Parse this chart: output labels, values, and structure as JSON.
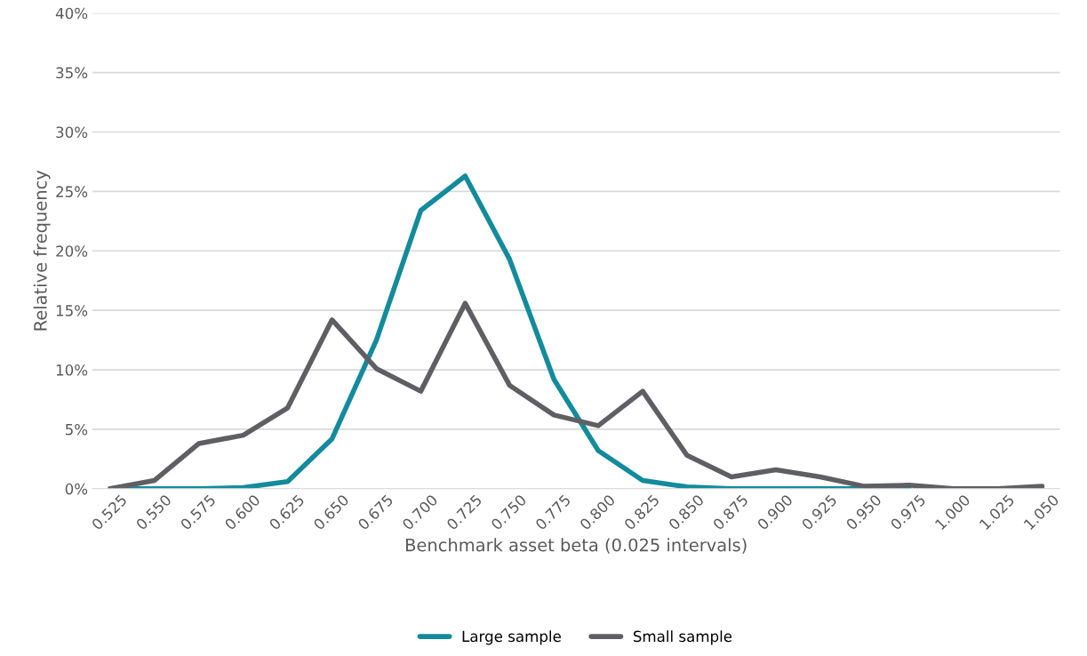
{
  "chart_data": {
    "type": "line",
    "xlabel": "Benchmark asset beta (0.025 intervals)",
    "ylabel": "Relative frequency",
    "categories": [
      "0.525",
      "0.550",
      "0.575",
      "0.600",
      "0.625",
      "0.650",
      "0.675",
      "0.700",
      "0.725",
      "0.750",
      "0.775",
      "0.800",
      "0.825",
      "0.850",
      "0.875",
      "0.900",
      "0.925",
      "0.950",
      "0.975",
      "1.000",
      "1.025",
      "1.050"
    ],
    "series": [
      {
        "name": "Large sample",
        "color": "#138b9c",
        "values": [
          0,
          0,
          0,
          0.1,
          0.6,
          4.2,
          12.5,
          23.4,
          26.3,
          19.3,
          9.2,
          3.2,
          0.7,
          0.15,
          0,
          0,
          0,
          0,
          0,
          null,
          null,
          null
        ]
      },
      {
        "name": "Small sample",
        "color": "#5f5f63",
        "values": [
          0,
          0.7,
          3.8,
          4.5,
          6.8,
          14.2,
          10.1,
          8.2,
          15.6,
          8.7,
          6.2,
          5.3,
          8.2,
          2.8,
          1.0,
          1.6,
          1.0,
          0.2,
          0.3,
          0,
          0,
          0.2
        ]
      }
    ],
    "ylim": [
      0,
      40
    ],
    "yticks": [
      {
        "value": 0,
        "label": "0%"
      },
      {
        "value": 5,
        "label": "5%"
      },
      {
        "value": 10,
        "label": "10%"
      },
      {
        "value": 15,
        "label": "15%"
      },
      {
        "value": 20,
        "label": "20%"
      },
      {
        "value": 25,
        "label": "25%"
      },
      {
        "value": 30,
        "label": "30%"
      },
      {
        "value": 35,
        "label": "35%"
      },
      {
        "value": 40,
        "label": "40%"
      }
    ],
    "grid": "y",
    "legend": "bottom",
    "marker": "none",
    "line_style": "solid"
  }
}
